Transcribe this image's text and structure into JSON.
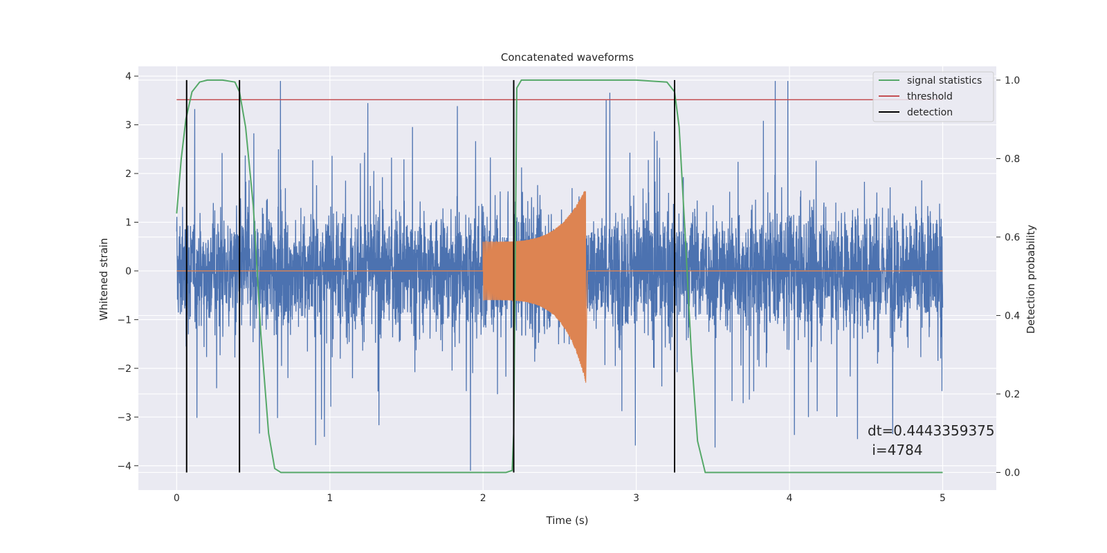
{
  "chart_data": {
    "type": "line",
    "title": "Concatenated waveforms",
    "xlabel": "Time (s)",
    "ylabel": "Whitened strain",
    "y2label": "Detection probability",
    "xlim": [
      -0.25,
      5.35
    ],
    "ylim": [
      -4.5,
      4.2
    ],
    "y2lim": [
      -0.045,
      1.035
    ],
    "xticks": [
      0,
      1,
      2,
      3,
      4,
      5
    ],
    "yticks": [
      -4,
      -3,
      -2,
      -1,
      0,
      1,
      2,
      3,
      4
    ],
    "y2ticks": [
      0.0,
      0.2,
      0.4,
      0.6,
      0.8,
      1.0
    ],
    "xtick_labels": [
      "0",
      "1",
      "2",
      "3",
      "4",
      "5"
    ],
    "ytick_labels": [
      "−4",
      "−3",
      "−2",
      "−1",
      "0",
      "1",
      "2",
      "3",
      "4"
    ],
    "y2tick_labels": [
      "0.0",
      "0.2",
      "0.4",
      "0.6",
      "0.8",
      "1.0"
    ],
    "grid": true,
    "legend_position": "top-right",
    "colors": {
      "background": "#EAEAF2",
      "noise": "#4C72B0",
      "waveform": "#DD8452",
      "signal_statistics": "#55A868",
      "threshold": "#C44E52",
      "detection": "#000000"
    },
    "series": [
      {
        "name": "signal statistics",
        "axis": "right",
        "x": [
          0.0,
          0.03,
          0.06,
          0.1,
          0.15,
          0.2,
          0.3,
          0.38,
          0.41,
          0.45,
          0.5,
          0.55,
          0.6,
          0.64,
          0.68,
          1.0,
          2.0,
          2.15,
          2.19,
          2.2,
          2.22,
          2.25,
          2.3,
          3.0,
          3.2,
          3.25,
          3.28,
          3.32,
          3.36,
          3.4,
          3.45,
          4.0,
          5.0
        ],
        "y": [
          0.66,
          0.8,
          0.9,
          0.97,
          0.995,
          1.0,
          1.0,
          0.995,
          0.97,
          0.88,
          0.68,
          0.35,
          0.1,
          0.01,
          0.0,
          0.0,
          0.0,
          0.0,
          0.005,
          0.1,
          0.98,
          1.0,
          1.0,
          1.0,
          0.995,
          0.97,
          0.88,
          0.6,
          0.3,
          0.08,
          0.0,
          0.0,
          0.0
        ]
      },
      {
        "name": "threshold",
        "axis": "right",
        "x": [
          0.0,
          5.0
        ],
        "y": [
          0.95,
          0.95
        ]
      },
      {
        "name": "detection",
        "axis": "right",
        "x_positions": [
          0.065,
          0.41,
          2.2,
          3.25
        ],
        "y_range": [
          0.0,
          1.0
        ]
      }
    ],
    "noise_strain": {
      "x_range": [
        0.0,
        5.0
      ],
      "typical_range": [
        -1.5,
        1.5
      ],
      "peak_range": [
        -4.1,
        3.9
      ]
    },
    "waveform_strain": {
      "x_range": [
        2.0,
        2.67
      ],
      "start_amplitude": 0.6,
      "peak_max": 1.7,
      "peak_min": -2.3
    },
    "annotation": {
      "line1": "dt=0.4443359375",
      "line2": " i=4784"
    }
  }
}
